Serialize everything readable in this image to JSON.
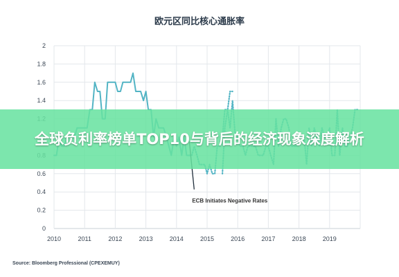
{
  "chart_data": {
    "type": "line",
    "title": "欧元区同比核心通胀率",
    "xlabel": "",
    "ylabel": "",
    "xlim": [
      2010,
      2020
    ],
    "ylim": [
      0,
      2
    ],
    "x_ticks": [
      "2010",
      "2011",
      "2012",
      "2013",
      "2014",
      "2015",
      "2016",
      "2017",
      "2018",
      "2019"
    ],
    "y_ticks": [
      "0",
      "0.2",
      "0.4",
      "0.6",
      "0.8",
      "1",
      "1.2",
      "1.4",
      "1.6",
      "1.8",
      "2"
    ],
    "grid": true,
    "series": [
      {
        "style": "solid",
        "color": "#52b4c4",
        "points": [
          [
            2010.0,
            0.8
          ],
          [
            2010.08,
            0.8
          ],
          [
            2010.17,
            1.0
          ],
          [
            2010.25,
            0.9
          ],
          [
            2010.33,
            0.9
          ],
          [
            2010.42,
            1.0
          ],
          [
            2010.5,
            1.0
          ],
          [
            2010.58,
            1.0
          ],
          [
            2010.67,
            1.0
          ],
          [
            2010.75,
            1.1
          ],
          [
            2010.83,
            1.1
          ],
          [
            2010.92,
            1.1
          ],
          [
            2011.0,
            1.1
          ],
          [
            2011.08,
            1.1
          ],
          [
            2011.17,
            1.3
          ],
          [
            2011.25,
            1.3
          ],
          [
            2011.33,
            1.6
          ],
          [
            2011.42,
            1.5
          ],
          [
            2011.5,
            1.5
          ],
          [
            2011.58,
            1.2
          ],
          [
            2011.67,
            1.2
          ],
          [
            2011.75,
            1.6
          ],
          [
            2011.83,
            1.6
          ],
          [
            2011.92,
            1.6
          ],
          [
            2012.0,
            1.6
          ],
          [
            2012.08,
            1.5
          ],
          [
            2012.17,
            1.5
          ],
          [
            2012.25,
            1.6
          ],
          [
            2012.33,
            1.6
          ],
          [
            2012.42,
            1.6
          ],
          [
            2012.5,
            1.6
          ],
          [
            2012.58,
            1.7
          ],
          [
            2012.67,
            1.5
          ],
          [
            2012.75,
            1.5
          ],
          [
            2012.83,
            1.5
          ],
          [
            2012.92,
            1.4
          ],
          [
            2013.0,
            1.5
          ],
          [
            2013.08,
            1.3
          ],
          [
            2013.17,
            1.3
          ],
          [
            2013.25,
            1.0
          ],
          [
            2013.33,
            1.2
          ],
          [
            2013.42,
            1.1
          ],
          [
            2013.5,
            1.1
          ],
          [
            2013.58,
            1.1
          ],
          [
            2013.67,
            1.0
          ],
          [
            2013.75,
            0.9
          ],
          [
            2013.83,
            0.8
          ],
          [
            2013.92,
            1.0
          ],
          [
            2014.0,
            0.9
          ],
          [
            2014.08,
            1.0
          ],
          [
            2014.17,
            0.8
          ],
          [
            2014.25,
            1.0
          ],
          [
            2014.33,
            0.8
          ],
          [
            2014.42,
            0.8
          ]
        ]
      },
      {
        "style": "dotted",
        "color": "#52b4c4",
        "points": [
          [
            2014.42,
            0.8
          ],
          [
            2014.5,
            0.8
          ],
          [
            2014.58,
            0.9
          ],
          [
            2014.67,
            0.8
          ],
          [
            2014.75,
            0.7
          ],
          [
            2014.83,
            0.7
          ],
          [
            2014.92,
            0.7
          ],
          [
            2015.0,
            0.6
          ],
          [
            2015.08,
            0.7
          ],
          [
            2015.17,
            0.6
          ],
          [
            2015.25,
            0.6
          ],
          [
            2015.33,
            0.9
          ],
          [
            2015.42,
            0.9
          ],
          [
            2015.5,
            1.0
          ],
          [
            2015.58,
            1.3
          ],
          [
            2015.67,
            1.3
          ],
          [
            2015.75,
            1.1
          ],
          [
            2015.83,
            1.4
          ],
          [
            2015.92,
            1.0
          ],
          [
            2016.0,
            1.0
          ],
          [
            2016.08,
            0.9
          ],
          [
            2016.17,
            0.9
          ],
          [
            2016.25,
            0.8
          ],
          [
            2016.33,
            0.9
          ],
          [
            2016.42,
            0.9
          ],
          [
            2016.5,
            0.9
          ],
          [
            2016.58,
            0.9
          ],
          [
            2016.67,
            0.8
          ],
          [
            2016.75,
            0.8
          ],
          [
            2016.83,
            0.8
          ],
          [
            2016.92,
            0.9
          ],
          [
            2017.0,
            0.9
          ],
          [
            2017.08,
            0.8
          ],
          [
            2017.17,
            0.7
          ],
          [
            2017.25,
            1.2
          ],
          [
            2017.33,
            0.9
          ],
          [
            2017.42,
            1.1
          ],
          [
            2017.5,
            1.2
          ],
          [
            2017.58,
            1.2
          ],
          [
            2017.67,
            1.1
          ],
          [
            2017.75,
            0.9
          ],
          [
            2017.83,
            0.9
          ],
          [
            2017.92,
            0.9
          ],
          [
            2018.0,
            1.0
          ],
          [
            2018.08,
            1.0
          ],
          [
            2018.17,
            1.0
          ],
          [
            2018.25,
            0.7
          ],
          [
            2018.33,
            1.1
          ],
          [
            2018.42,
            0.9
          ],
          [
            2018.5,
            1.1
          ],
          [
            2018.58,
            1.0
          ],
          [
            2018.67,
            0.9
          ],
          [
            2018.75,
            1.1
          ],
          [
            2018.83,
            1.0
          ],
          [
            2018.92,
            1.0
          ],
          [
            2019.0,
            1.1
          ],
          [
            2019.08,
            0.8
          ],
          [
            2019.17,
            0.8
          ],
          [
            2019.25,
            1.3
          ],
          [
            2019.33,
            0.8
          ],
          [
            2019.42,
            1.1
          ],
          [
            2019.5,
            0.9
          ],
          [
            2019.58,
            0.9
          ],
          [
            2019.67,
            1.0
          ],
          [
            2019.75,
            1.1
          ],
          [
            2019.83,
            1.3
          ],
          [
            2019.92,
            1.3
          ]
        ]
      },
      {
        "style": "dotted",
        "color": "#52b4c4",
        "points": [
          [
            2015.5,
            0.6
          ],
          [
            2015.58,
            1.1
          ],
          [
            2015.67,
            1.3
          ],
          [
            2015.75,
            1.5
          ],
          [
            2015.83,
            1.5
          ]
        ]
      }
    ],
    "annotations": [
      {
        "text": "ECB Initiates Negative Rates",
        "x": 2014.6,
        "y": 0.45,
        "y_end": 0.95
      }
    ]
  },
  "source": "Source: Bloomberg Professional (CPEXEMUY)",
  "banner": {
    "text": "全球负利率榜单TOP10与背后的经济现象深度解析"
  }
}
